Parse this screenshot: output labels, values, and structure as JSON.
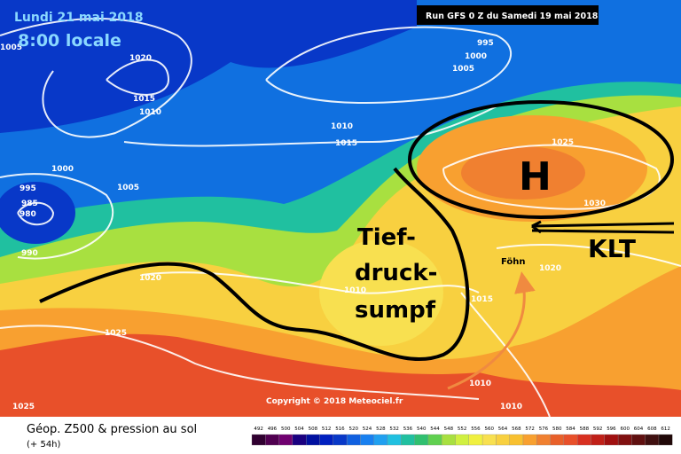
{
  "header": {
    "date": "Lundi 21 mai 2018",
    "time": "8:00 locale",
    "run": "Run GFS 0 Z du Samedi 19 mai 2018"
  },
  "annotations": {
    "high": "H",
    "low_line1": "Tief-",
    "low_line2": "druck-",
    "low_line3": "sumpf",
    "cold": "KLT",
    "foehn": "Föhn"
  },
  "isobar_labels": [
    "1005",
    "1020",
    "1015",
    "1010",
    "995",
    "1000",
    "1005",
    "1010",
    "1015",
    "1000",
    "995",
    "985",
    "980",
    "1005",
    "990",
    "1020",
    "1025",
    "1025",
    "1010",
    "1015",
    "1020",
    "1030",
    "1010",
    "1010",
    "1025"
  ],
  "copyright": "Copyright © 2018 Meteociel.fr",
  "footer": {
    "title": "Géop. Z500 & pression au sol",
    "lead": "(+ 54h)"
  },
  "legend_labels": [
    "492",
    "496",
    "500",
    "504",
    "508",
    "512",
    "516",
    "520",
    "524",
    "528",
    "532",
    "536",
    "540",
    "544",
    "548",
    "552",
    "556",
    "560",
    "564",
    "568",
    "572",
    "576",
    "580",
    "584",
    "588",
    "592",
    "596",
    "600",
    "604",
    "608",
    "612"
  ]
}
